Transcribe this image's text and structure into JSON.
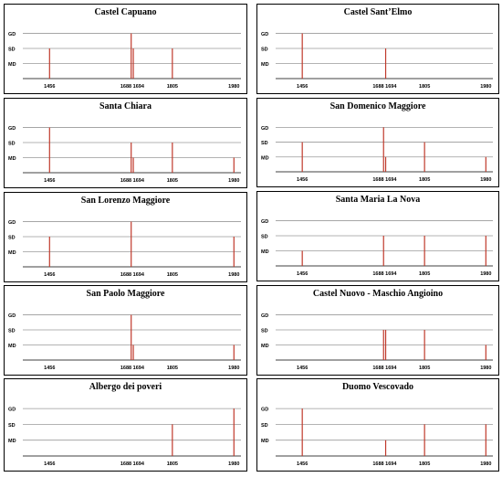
{
  "chart_data": [
    {
      "type": "bar",
      "title": "Castel Capuano",
      "x": [
        1456,
        1688,
        1694,
        1805
      ],
      "values": [
        2,
        3,
        2,
        2
      ],
      "xticks": [
        "1456",
        "1688 1694",
        "1805",
        "1980"
      ],
      "yticks": [
        "MD",
        "SD",
        "GD"
      ],
      "xlim": [
        1380,
        2000
      ],
      "ylim": [
        0,
        3
      ]
    },
    {
      "type": "bar",
      "title": "Castel Sant’Elmo",
      "x": [
        1456,
        1694
      ],
      "values": [
        3,
        2
      ],
      "xticks": [
        "1456",
        "1688 1694",
        "1805",
        "1980"
      ],
      "yticks": [
        "MD",
        "SD",
        "GD"
      ],
      "xlim": [
        1380,
        2000
      ],
      "ylim": [
        0,
        3
      ]
    },
    {
      "type": "bar",
      "title": "Santa Chiara",
      "x": [
        1456,
        1688,
        1694,
        1805,
        1980
      ],
      "values": [
        3,
        2,
        1,
        2,
        1
      ],
      "xticks": [
        "1456",
        "1688 1694",
        "1805",
        "1980"
      ],
      "yticks": [
        "MD",
        "SD",
        "GD"
      ],
      "xlim": [
        1380,
        2000
      ],
      "ylim": [
        0,
        3
      ]
    },
    {
      "type": "bar",
      "title": "San Domenico Maggiore",
      "x": [
        1456,
        1688,
        1694,
        1805,
        1980
      ],
      "values": [
        2,
        3,
        1,
        2,
        1
      ],
      "xticks": [
        "1456",
        "1688 1694",
        "1805",
        "1980"
      ],
      "yticks": [
        "MD",
        "SD",
        "GD"
      ],
      "xlim": [
        1380,
        2000
      ],
      "ylim": [
        0,
        3
      ]
    },
    {
      "type": "bar",
      "title": "San Lorenzo Maggiore",
      "x": [
        1456,
        1688,
        1980
      ],
      "values": [
        2,
        3,
        2
      ],
      "xticks": [
        "1456",
        "1688 1694",
        "1805",
        "1980"
      ],
      "yticks": [
        "MD",
        "SD",
        "GD"
      ],
      "xlim": [
        1380,
        2000
      ],
      "ylim": [
        0,
        3
      ]
    },
    {
      "type": "bar",
      "title": "Santa Maria La Nova",
      "x": [
        1456,
        1688,
        1805,
        1980
      ],
      "values": [
        1,
        2,
        2,
        2
      ],
      "xticks": [
        "1456",
        "1688 1694",
        "1805",
        "1980"
      ],
      "yticks": [
        "MD",
        "SD",
        "GD"
      ],
      "xlim": [
        1380,
        2000
      ],
      "ylim": [
        0,
        3
      ]
    },
    {
      "type": "bar",
      "title": "San Paolo Maggiore",
      "x": [
        1688,
        1694,
        1980
      ],
      "values": [
        3,
        1,
        1
      ],
      "xticks": [
        "1456",
        "1688 1694",
        "1805",
        "1980"
      ],
      "yticks": [
        "MD",
        "SD",
        "GD"
      ],
      "xlim": [
        1380,
        2000
      ],
      "ylim": [
        0,
        3
      ]
    },
    {
      "type": "bar",
      "title": "Castel Nuovo - Maschio Angioino",
      "x": [
        1688,
        1694,
        1805,
        1980
      ],
      "values": [
        2,
        2,
        2,
        1
      ],
      "xticks": [
        "1456",
        "1688 1694",
        "1805",
        "1980"
      ],
      "yticks": [
        "MD",
        "SD",
        "GD"
      ],
      "xlim": [
        1380,
        2000
      ],
      "ylim": [
        0,
        3
      ]
    },
    {
      "type": "bar",
      "title": "Albergo dei poveri",
      "x": [
        1805,
        1980
      ],
      "values": [
        2,
        3
      ],
      "xticks": [
        "1456",
        "1688 1694",
        "1805",
        "1980"
      ],
      "yticks": [
        "MD",
        "SD",
        "GD"
      ],
      "xlim": [
        1380,
        2000
      ],
      "ylim": [
        0,
        3
      ]
    },
    {
      "type": "bar",
      "title": "Duomo Vescovado",
      "x": [
        1456,
        1694,
        1805,
        1980
      ],
      "values": [
        3,
        1,
        2,
        2
      ],
      "xticks": [
        "1456",
        "1688 1694",
        "1805",
        "1980"
      ],
      "yticks": [
        "MD",
        "SD",
        "GD"
      ],
      "xlim": [
        1380,
        2000
      ],
      "ylim": [
        0,
        3
      ]
    }
  ],
  "colors": {
    "bar": "#c0392b",
    "grid": "#9a9a9a",
    "axis": "#000000",
    "border": "#000000"
  }
}
